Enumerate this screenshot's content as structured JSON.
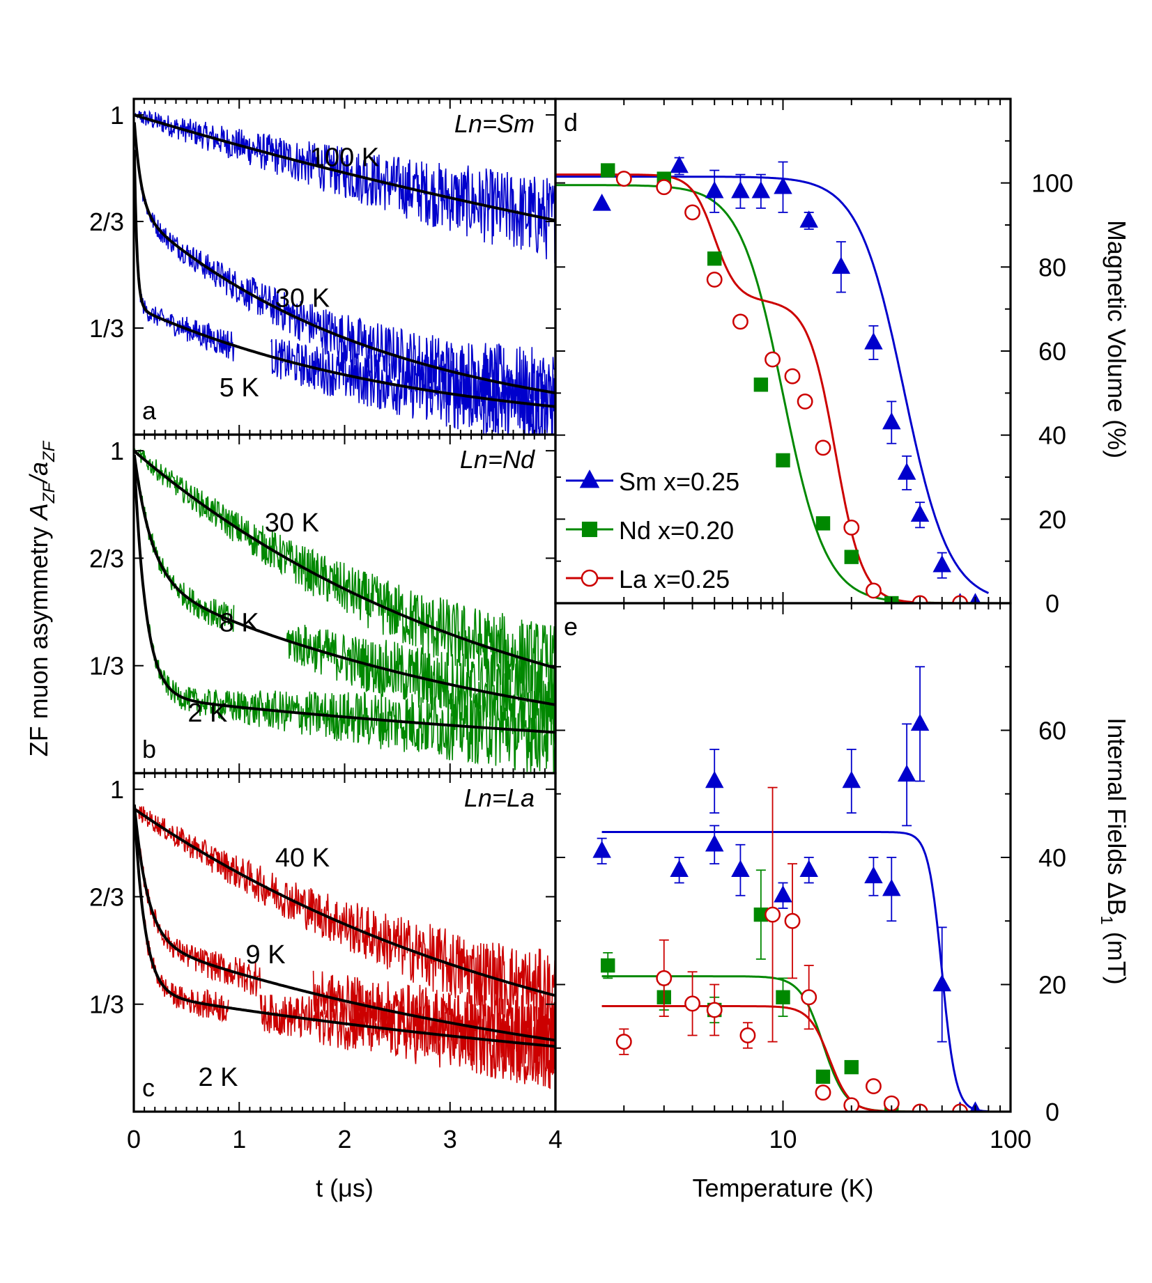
{
  "chart_data": [
    {
      "id": "a",
      "type": "line",
      "title": "Ln=Sm",
      "panel_label": "a",
      "color": "#0000cc",
      "xlim": [
        0,
        4
      ],
      "ylim": [
        0,
        1.05
      ],
      "yticks": [
        {
          "v": 1,
          "label": "1"
        },
        {
          "v": 0.6667,
          "label": "2/3"
        },
        {
          "v": 0.3333,
          "label": "1/3"
        }
      ],
      "series": [
        {
          "name": "100 K",
          "a0": 1.0,
          "f": 0.0,
          "lf": 0.0,
          "ls": 0.1,
          "label_pos": [
            2.0,
            0.84
          ],
          "gap": null
        },
        {
          "name": "30 K",
          "a0": 1.0,
          "f": 0.3,
          "lf": 15.0,
          "ls": 0.42,
          "label_pos": [
            1.6,
            0.4
          ],
          "gap": null
        },
        {
          "name": "5 K",
          "a0": 1.0,
          "f": 0.6,
          "lf": 40.0,
          "ls": 0.38,
          "label_pos": [
            1.0,
            0.12
          ],
          "gap": [
            0.95,
            1.3
          ]
        }
      ]
    },
    {
      "id": "b",
      "type": "line",
      "title": "Ln=Nd",
      "panel_label": "b",
      "color": "#008800",
      "xlim": [
        0,
        4
      ],
      "ylim": [
        0,
        1.05
      ],
      "yticks": [
        {
          "v": 1,
          "label": "1"
        },
        {
          "v": 0.6667,
          "label": "2/3"
        },
        {
          "v": 0.3333,
          "label": "1/3"
        }
      ],
      "series": [
        {
          "name": "30 K",
          "a0": 1.0,
          "f": 0.0,
          "lf": 0.0,
          "ls": 0.28,
          "label_pos": [
            1.5,
            0.75
          ],
          "gap": null
        },
        {
          "name": "8 K",
          "a0": 1.0,
          "f": 0.4,
          "lf": 6.0,
          "ls": 0.26,
          "label_pos": [
            1.0,
            0.44
          ],
          "gap": [
            0.95,
            1.45
          ]
        },
        {
          "name": "2 K",
          "a0": 1.0,
          "f": 0.76,
          "lf": 9.0,
          "ls": 0.16,
          "label_pos": [
            0.7,
            0.16
          ],
          "gap": null
        }
      ]
    },
    {
      "id": "c",
      "type": "line",
      "title": "Ln=La",
      "panel_label": "c",
      "color": "#cc0000",
      "xlim": [
        0,
        4
      ],
      "ylim": [
        0,
        1.05
      ],
      "yticks": [
        {
          "v": 1,
          "label": "1"
        },
        {
          "v": 0.6667,
          "label": "2/3"
        },
        {
          "v": 0.3333,
          "label": "1/3"
        }
      ],
      "series": [
        {
          "name": "40 K",
          "a0": 0.94,
          "f": 0.0,
          "lf": 0.0,
          "ls": 0.24,
          "label_pos": [
            1.6,
            0.76
          ],
          "gap": null
        },
        {
          "name": "9 K",
          "a0": 0.97,
          "f": 0.45,
          "lf": 8.0,
          "ls": 0.22,
          "label_pos": [
            1.25,
            0.46
          ],
          "gap": [
            1.2,
            1.7
          ]
        },
        {
          "name": "2 K",
          "a0": 0.97,
          "f": 0.62,
          "lf": 10.0,
          "ls": 0.15,
          "label_pos": [
            0.8,
            0.08
          ],
          "gap": [
            0.9,
            1.2
          ]
        }
      ]
    },
    {
      "id": "d",
      "type": "scatter",
      "panel_label": "d",
      "xscale": "log",
      "xlim": [
        1,
        100
      ],
      "ylim": [
        0,
        120
      ],
      "yticks": [
        0,
        20,
        40,
        60,
        80,
        100
      ],
      "ylabel": "Magnetic Volume (%)",
      "series": [
        {
          "name": "Sm x=0.25",
          "color": "#0000cc",
          "marker": "triangle",
          "points": [
            [
              1.6,
              95,
              0
            ],
            [
              3.5,
              104,
              2
            ],
            [
              5,
              98,
              5
            ],
            [
              6.5,
              98,
              4
            ],
            [
              8,
              98,
              4
            ],
            [
              10,
              99,
              6
            ],
            [
              13,
              91,
              2
            ],
            [
              18,
              80,
              6
            ],
            [
              25,
              62,
              4
            ],
            [
              30,
              43,
              5
            ],
            [
              35,
              31,
              4
            ],
            [
              40,
              21,
              3
            ],
            [
              50,
              9,
              3
            ],
            [
              60,
              0,
              0
            ],
            [
              70,
              0,
              0
            ]
          ],
          "fit": {
            "amp": 101.5,
            "tc": 34,
            "w": 0.1,
            "ts": [
              1,
              80
            ]
          }
        },
        {
          "name": "Nd x=0.20",
          "color": "#008800",
          "marker": "square",
          "points": [
            [
              1.7,
              103,
              0
            ],
            [
              3,
              101,
              0
            ],
            [
              5,
              82,
              0
            ],
            [
              8,
              52,
              0
            ],
            [
              10,
              34,
              0
            ],
            [
              15,
              19,
              0
            ],
            [
              20,
              11,
              0
            ],
            [
              30,
              0,
              0
            ]
          ],
          "fit": {
            "amp": 99.5,
            "tc": 10,
            "w": 0.095,
            "ts": [
              1,
              100
            ]
          }
        },
        {
          "name": "La x=0.25",
          "color": "#cc0000",
          "marker": "circle",
          "points": [
            [
              2,
              101,
              0
            ],
            [
              3,
              99,
              0
            ],
            [
              4,
              93,
              0
            ],
            [
              5,
              77,
              0
            ],
            [
              6.5,
              67,
              0
            ],
            [
              9,
              58,
              0
            ],
            [
              11,
              54,
              0
            ],
            [
              12.5,
              48,
              0
            ],
            [
              15,
              37,
              0
            ],
            [
              20,
              18,
              0
            ],
            [
              25,
              3,
              0
            ],
            [
              40,
              0,
              0
            ],
            [
              60,
              0,
              0
            ]
          ],
          "fit2": {
            "a1": 30,
            "t1": 5,
            "w1": 0.05,
            "a2": 72,
            "t2": 17,
            "w2": 0.06,
            "ts": [
              1,
              100
            ]
          }
        }
      ]
    },
    {
      "id": "e",
      "type": "scatter",
      "panel_label": "e",
      "xscale": "log",
      "xlim": [
        1,
        100
      ],
      "ylim": [
        0,
        80
      ],
      "yticks": [
        0,
        20,
        40,
        60
      ],
      "xticks": [
        {
          "v": 10,
          "label": "10"
        },
        {
          "v": 100,
          "label": "100"
        }
      ],
      "xlabel": "Temperature (K)",
      "ylabel": "Internal Fields ΔB",
      "ylabel_sub": "1",
      "ylabel_unit": "(mT)",
      "series": [
        {
          "name": "Sm",
          "color": "#0000cc",
          "marker": "triangle",
          "points": [
            [
              1.6,
              41,
              2
            ],
            [
              3.5,
              38,
              2
            ],
            [
              5,
              52,
              5
            ],
            [
              5,
              42,
              3
            ],
            [
              6.5,
              38,
              4
            ],
            [
              10,
              34,
              2
            ],
            [
              13,
              38,
              2
            ],
            [
              20,
              52,
              5
            ],
            [
              25,
              37,
              3
            ],
            [
              30,
              35,
              5
            ],
            [
              35,
              53,
              8
            ],
            [
              40,
              61,
              9
            ],
            [
              50,
              20,
              9
            ],
            [
              60,
              0,
              0
            ],
            [
              70,
              0,
              0
            ]
          ],
          "fit": {
            "amp": 44,
            "tc": 50,
            "w": 0.03,
            "ts": [
              1.6,
              80
            ]
          }
        },
        {
          "name": "Nd",
          "color": "#008800",
          "marker": "square",
          "points": [
            [
              1.7,
              23,
              2
            ],
            [
              3,
              18,
              2
            ],
            [
              5,
              16,
              2
            ],
            [
              8,
              31,
              7
            ],
            [
              10,
              18,
              3
            ],
            [
              15,
              5.5,
              0
            ],
            [
              20,
              7,
              0
            ],
            [
              30,
              0,
              0
            ]
          ],
          "fit": {
            "amp": 21.3,
            "tc": 15,
            "w": 0.05,
            "ts": [
              1.6,
              100
            ]
          }
        },
        {
          "name": "La",
          "color": "#cc0000",
          "marker": "circle",
          "points": [
            [
              2,
              11,
              2
            ],
            [
              3,
              21,
              6
            ],
            [
              4,
              17,
              5
            ],
            [
              5,
              16,
              4
            ],
            [
              7,
              12,
              2
            ],
            [
              9,
              31,
              20
            ],
            [
              11,
              30,
              9
            ],
            [
              13,
              18,
              5
            ],
            [
              15,
              3,
              0
            ],
            [
              20,
              1,
              0
            ],
            [
              25,
              4,
              0
            ],
            [
              30,
              1.3,
              0
            ],
            [
              40,
              0,
              0
            ],
            [
              60,
              0,
              0
            ]
          ],
          "fit": {
            "amp": 16.6,
            "tc": 16,
            "w": 0.045,
            "ts": [
              1.6,
              100
            ]
          }
        }
      ]
    }
  ],
  "left_xaxis": {
    "ticks": [
      "0",
      "1",
      "2",
      "3",
      "4"
    ],
    "xlabel": "t (μs)"
  },
  "left_ylabel": {
    "prefix": "ZF muon asymmetry ",
    "A": "A",
    "sub1": "ZF",
    "slash": "/a",
    "sub2": "ZF"
  },
  "legend": [
    {
      "label": "Sm x=0.25",
      "color": "#0000cc",
      "marker": "triangle"
    },
    {
      "label": "Nd x=0.20",
      "color": "#008800",
      "marker": "square"
    },
    {
      "label": "La x=0.25",
      "color": "#cc0000",
      "marker": "circle"
    }
  ]
}
